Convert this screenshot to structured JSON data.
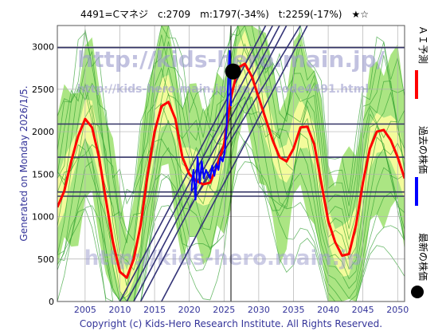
{
  "header": {
    "text": "4491=Cマネジ　c:2709　m:1797(-34%)　t:2259(-17%)　★☆"
  },
  "watermarks": {
    "top": "http://kids-hero.main.jp/",
    "mid": "http://kids-hero.main.jp/stocks/code4491.html",
    "bottom": "http://kids-hero.main.jp"
  },
  "left_label": "Generated on Monday 2026/1/5.",
  "copyright": "Copyright (c) Kids-Hero Research Institute. All Rights Reserved.",
  "legend": {
    "ai_forecast": "ＡＩ予測",
    "past_price": "過去の株価",
    "latest_price": "最新の株価"
  },
  "colors": {
    "ai_forecast": "#ff0000",
    "past_price": "#0000ff",
    "latest_price": "#000000",
    "band_dark": "#8fdc5a",
    "band_light": "#ffffa0",
    "hlines": "#333366",
    "trend_lines": "#333377",
    "axis_text": "#333399"
  },
  "chart_data": {
    "type": "line",
    "xlim": [
      2001,
      2051
    ],
    "ylim": [
      0,
      3250
    ],
    "x_ticks": [
      "2005",
      "2010",
      "2015",
      "2020",
      "2025",
      "2030",
      "2035",
      "2040",
      "2045",
      "2050"
    ],
    "y_ticks": [
      "0",
      "500",
      "1000",
      "1500",
      "2000",
      "2500",
      "3000"
    ],
    "horizontal_levels": [
      2990,
      2090,
      1700,
      1290,
      1240
    ],
    "current_year": 2026,
    "latest_price": {
      "x": 2026.3,
      "y": 2709
    },
    "series": [
      {
        "name": "ＡＩ予測",
        "x": [
          2001,
          2002,
          2003,
          2004,
          2005,
          2006,
          2007,
          2008,
          2009,
          2010,
          2011,
          2012,
          2013,
          2014,
          2015,
          2016,
          2017,
          2018,
          2019,
          2020,
          2021,
          2022,
          2023,
          2024,
          2025,
          2026,
          2027,
          2028,
          2029,
          2030,
          2031,
          2032,
          2033,
          2034,
          2035,
          2036,
          2037,
          2038,
          2039,
          2040,
          2041,
          2042,
          2043,
          2044,
          2045,
          2046,
          2047,
          2048,
          2049,
          2050,
          2051
        ],
        "y": [
          1110,
          1300,
          1650,
          1950,
          2150,
          2050,
          1700,
          1200,
          700,
          350,
          280,
          500,
          900,
          1500,
          2000,
          2300,
          2350,
          2150,
          1700,
          1500,
          1420,
          1380,
          1400,
          1600,
          1850,
          2400,
          2750,
          2800,
          2650,
          2400,
          2150,
          1900,
          1700,
          1650,
          1800,
          2050,
          2060,
          1850,
          1400,
          950,
          700,
          540,
          560,
          900,
          1400,
          1800,
          2000,
          2020,
          1900,
          1700,
          1450
        ]
      },
      {
        "name": "過去の株価",
        "x": [
          2020.3,
          2020.6,
          2020.9,
          2021.2,
          2021.5,
          2021.8,
          2022.1,
          2022.4,
          2022.7,
          2023.0,
          2023.3,
          2023.6,
          2023.9,
          2024.2,
          2024.5,
          2024.8,
          2025.1,
          2025.4,
          2025.6,
          2025.8,
          2026.0
        ],
        "y": [
          1300,
          1550,
          1200,
          1700,
          1400,
          1650,
          1450,
          1550,
          1500,
          1450,
          1600,
          1480,
          1620,
          1550,
          1700,
          1650,
          1750,
          2100,
          2600,
          2950,
          2300
        ]
      }
    ]
  }
}
